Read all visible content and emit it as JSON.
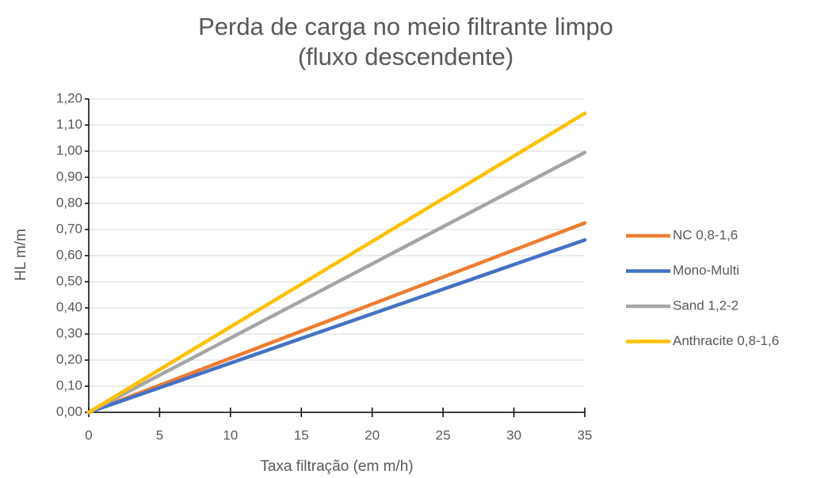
{
  "chart_data": {
    "type": "line",
    "title": [
      "Perda de carga no meio filtrante limpo",
      "(fluxo descendente)"
    ],
    "xlabel": "Taxa filtração (em m/h)",
    "ylabel": "HL m/m",
    "x": [
      0,
      35
    ],
    "series": [
      {
        "name": "NC 0,8-1,6",
        "color": "#ed7d31",
        "values": [
          0,
          0.725
        ]
      },
      {
        "name": "Mono-Multi",
        "color": "#4472c4",
        "values": [
          0,
          0.66
        ]
      },
      {
        "name": "Sand 1,2-2",
        "color": "#a5a5a5",
        "values": [
          0,
          0.995
        ]
      },
      {
        "name": "Anthracite 0,8-1,6",
        "color": "#ffc000",
        "values": [
          0,
          1.145
        ]
      }
    ],
    "xlim": [
      0,
      35
    ],
    "xticks": [
      0,
      5,
      10,
      15,
      20,
      25,
      30,
      35
    ],
    "ylim": [
      0,
      1.2
    ],
    "yticks": [
      {
        "value": 0,
        "label": "0,00"
      },
      {
        "value": 0.1,
        "label": "0,10"
      },
      {
        "value": 0.2,
        "label": "0,20"
      },
      {
        "value": 0.3,
        "label": "0,30"
      },
      {
        "value": 0.4,
        "label": "0,40"
      },
      {
        "value": 0.5,
        "label": "0,50"
      },
      {
        "value": 0.6,
        "label": "0,60"
      },
      {
        "value": 0.7,
        "label": "0,70"
      },
      {
        "value": 0.8,
        "label": "0,80"
      },
      {
        "value": 0.9,
        "label": "0,90"
      },
      {
        "value": 1.0,
        "label": "1,00"
      },
      {
        "value": 1.1,
        "label": "1,10"
      },
      {
        "value": 1.2,
        "label": "1,20"
      }
    ],
    "grid": true,
    "legend": "right"
  }
}
